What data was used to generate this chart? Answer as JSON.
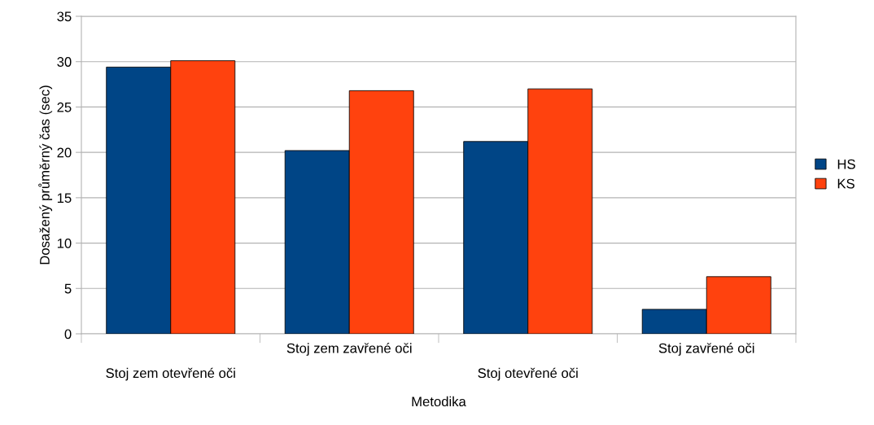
{
  "chart_data": {
    "type": "bar",
    "xlabel": "Metodika",
    "ylabel": "Dosažený průměrný čas (sec)",
    "categories": [
      "Stoj zem otevřené oči",
      "Stoj zem zavřené oči",
      "Stoj otevřené oči",
      "Stoj zavřené oči"
    ],
    "series": [
      {
        "name": "HS",
        "color": "#004586",
        "values": [
          29.4,
          20.2,
          21.2,
          2.7
        ]
      },
      {
        "name": "KS",
        "color": "#ff420e",
        "values": [
          30.1,
          26.8,
          27.0,
          6.3
        ]
      }
    ],
    "ylim": [
      0,
      35
    ],
    "yticks": [
      0,
      5,
      10,
      15,
      20,
      25,
      30,
      35
    ],
    "grid": "y",
    "legend": "right"
  }
}
